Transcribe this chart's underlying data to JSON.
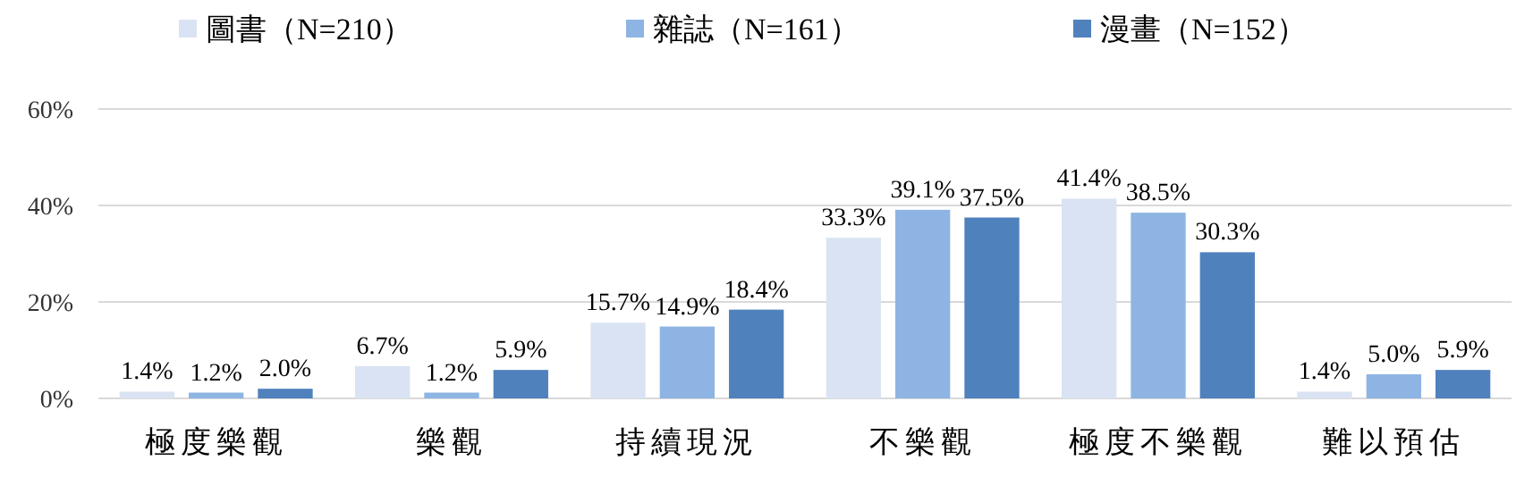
{
  "chart_data": {
    "type": "bar",
    "categories": [
      "極度樂觀",
      "樂觀",
      "持續現況",
      "不樂觀",
      "極度不樂觀",
      "難以預估"
    ],
    "series": [
      {
        "name": "圖書（N=210）",
        "color": "#dae3f3",
        "values": [
          1.4,
          6.7,
          15.7,
          33.3,
          41.4,
          1.4
        ],
        "value_labels": [
          "1.4%",
          "6.7%",
          "15.7%",
          "33.3%",
          "41.4%",
          "1.4%"
        ]
      },
      {
        "name": "雜誌（N=161）",
        "color": "#8eb4e3",
        "values": [
          1.2,
          1.2,
          14.9,
          39.1,
          38.5,
          5.0
        ],
        "value_labels": [
          "1.2%",
          "1.2%",
          "14.9%",
          "39.1%",
          "38.5%",
          "5.0%"
        ]
      },
      {
        "name": "漫畫（N=152）",
        "color": "#4f81bd",
        "values": [
          2.0,
          5.9,
          18.4,
          37.5,
          30.3,
          5.9
        ],
        "value_labels": [
          "2.0%",
          "5.9%",
          "18.4%",
          "37.5%",
          "30.3%",
          "5.9%"
        ]
      }
    ],
    "ylim": [
      0,
      60
    ],
    "yticks": [
      {
        "value": 0,
        "label": "0%"
      },
      {
        "value": 20,
        "label": "20%"
      },
      {
        "value": 40,
        "label": "40%"
      },
      {
        "value": 60,
        "label": "60%"
      }
    ],
    "grid": "y",
    "legend": "top"
  }
}
